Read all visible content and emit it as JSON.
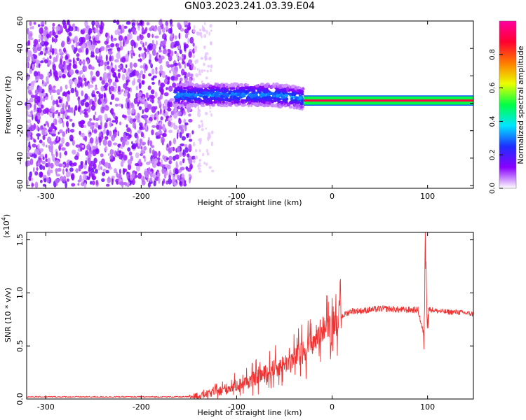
{
  "title": "GN03.2023.241.03.39.E04",
  "chart_data": [
    {
      "type": "heatmap",
      "xlabel": "Height of straight line (km)",
      "ylabel": "Frequency (Hz)",
      "xlim": [
        -320,
        148
      ],
      "ylim": [
        -62,
        60
      ],
      "xticks": [
        -300,
        -200,
        -100,
        0,
        100
      ],
      "yticks": [
        -60,
        -40,
        -20,
        0,
        20,
        40,
        60
      ],
      "colorbar": {
        "label": "Normalized spectral amplitude",
        "range": [
          0,
          1
        ],
        "ticks": [
          "0.0",
          "0.2",
          "0.4",
          "0.6",
          "0.8"
        ],
        "colors": [
          "#ffffff",
          "#8a00ff",
          "#1e2dff",
          "#00e6ff",
          "#00ff44",
          "#eaff00",
          "#ff7a00",
          "#ff0030",
          "#ff00a0"
        ]
      },
      "regions": [
        {
          "name": "broadband noise",
          "x_range": [
            -320,
            -145
          ],
          "freq_range": [
            -60,
            60
          ],
          "amplitude": 0.15
        },
        {
          "name": "sparse noise",
          "x_range": [
            -145,
            -125
          ],
          "freq_range": [
            -50,
            60
          ],
          "amplitude": 0.05
        },
        {
          "name": "signal band",
          "x_range": [
            -165,
            -30
          ],
          "center_freq": 6,
          "halfwidth_hz": 8,
          "amplitude": 0.3
        },
        {
          "name": "signal line",
          "x_range": [
            -30,
            148
          ],
          "center_freq": 2,
          "halfwidth_hz": 3,
          "amplitude": 0.9
        }
      ]
    },
    {
      "type": "line",
      "xlabel": "Height of straight line (km)",
      "ylabel": "SNR (10 * v/v)",
      "multiplier": "(x10",
      "multiplier_exp": "4",
      "xlim": [
        -320,
        148
      ],
      "ylim": [
        0,
        1.57
      ],
      "xticks": [
        -300,
        -200,
        -100,
        0,
        100
      ],
      "yticks": [
        "0.0",
        "0.5",
        "1.0",
        "1.5"
      ],
      "color": "#ef3333",
      "series": [
        {
          "x": [
            -320,
            -300,
            -250,
            -200,
            -160,
            -150,
            -140,
            -130,
            -120,
            -110,
            -100,
            -90,
            -80,
            -70,
            -60,
            -50,
            -40,
            -30,
            -20,
            -10,
            0,
            10,
            20,
            30,
            40,
            50,
            60,
            70,
            80,
            90,
            96,
            98,
            100,
            105,
            110,
            120,
            130,
            140,
            148
          ],
          "y": [
            0.02,
            0.02,
            0.02,
            0.02,
            0.02,
            0.02,
            0.03,
            0.05,
            0.07,
            0.1,
            0.13,
            0.16,
            0.2,
            0.24,
            0.29,
            0.33,
            0.38,
            0.45,
            0.55,
            0.66,
            0.72,
            0.78,
            0.83,
            0.83,
            0.84,
            0.85,
            0.85,
            0.84,
            0.84,
            0.84,
            0.6,
            1.55,
            0.85,
            0.84,
            0.83,
            0.82,
            0.82,
            0.81,
            0.8
          ]
        }
      ]
    }
  ]
}
